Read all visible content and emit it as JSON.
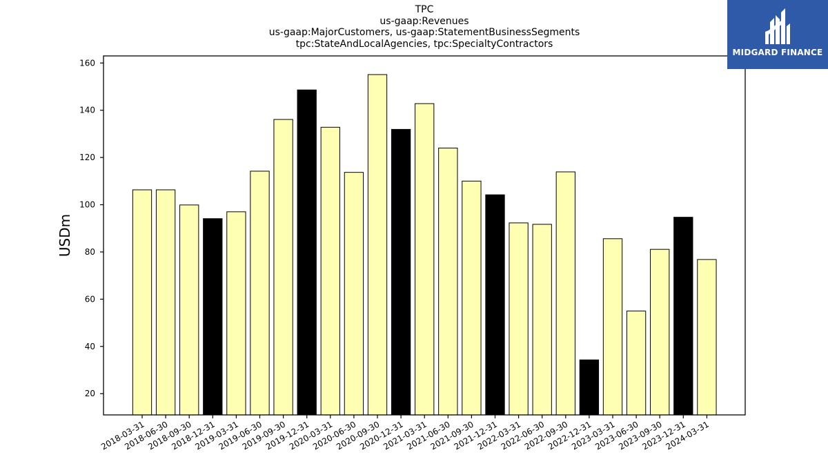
{
  "chart_data": {
    "type": "bar",
    "title_lines": [
      "TPC",
      "us-gaap:Revenues",
      "us-gaap:MajorCustomers, us-gaap:StatementBusinessSegments",
      "tpc:StateAndLocalAgencies, tpc:SpecialtyContractors"
    ],
    "ylabel": "USDm",
    "xlabel": "",
    "ylim": [
      11,
      163
    ],
    "yticks": [
      20,
      40,
      60,
      80,
      100,
      120,
      140,
      160
    ],
    "grid": false,
    "categories": [
      "2018-03-31",
      "2018-06-30",
      "2018-09-30",
      "2018-12-31",
      "2019-03-31",
      "2019-06-30",
      "2019-09-30",
      "2019-12-31",
      "2020-03-31",
      "2020-06-30",
      "2020-09-30",
      "2020-12-31",
      "2021-03-31",
      "2021-06-30",
      "2021-09-30",
      "2021-12-31",
      "2022-03-31",
      "2022-06-30",
      "2022-09-30",
      "2022-12-31",
      "2023-03-31",
      "2023-06-30",
      "2023-09-30",
      "2023-12-31",
      "2024-03-31"
    ],
    "values": [
      106.3,
      106.3,
      99.9,
      94.1,
      97.0,
      114.2,
      136.1,
      148.6,
      132.8,
      113.7,
      155.1,
      131.9,
      142.8,
      124.0,
      110.0,
      104.2,
      92.3,
      91.7,
      113.9,
      34.3,
      85.6,
      55.0,
      81.1,
      94.7,
      76.8
    ],
    "highlight": [
      false,
      false,
      false,
      true,
      false,
      false,
      false,
      true,
      false,
      false,
      false,
      true,
      false,
      false,
      false,
      true,
      false,
      false,
      false,
      true,
      false,
      false,
      false,
      true,
      false
    ],
    "colors": {
      "bar": "#ffffb3",
      "highlight_bar": "#000000",
      "edge": "#000000"
    }
  },
  "logo": {
    "text": "MIDGARD FINANCE",
    "background": "#2f5aa8"
  }
}
